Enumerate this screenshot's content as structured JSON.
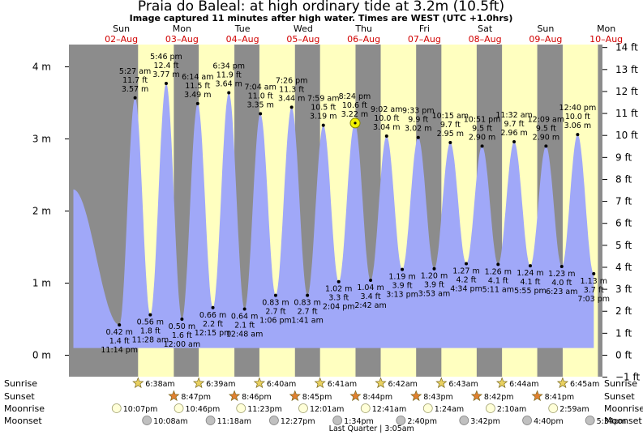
{
  "header": {
    "title": "Praia do Baleal: at high  ordinary tide at 3.2m (10.5ft)",
    "subtitle": "Image captured 11 minutes after high water. Times are WEST (UTC +1.0hrs)"
  },
  "days": [
    {
      "day": "Sun",
      "date": "02–Aug",
      "hour": 24
    },
    {
      "day": "Mon",
      "date": "03–Aug",
      "hour": 48
    },
    {
      "day": "Tue",
      "date": "04–Aug",
      "hour": 72
    },
    {
      "day": "Wed",
      "date": "05–Aug",
      "hour": 96
    },
    {
      "day": "Thu",
      "date": "06–Aug",
      "hour": 120
    },
    {
      "day": "Fri",
      "date": "07–Aug",
      "hour": 144
    },
    {
      "day": "Sat",
      "date": "08–Aug",
      "hour": 168
    },
    {
      "day": "Sun",
      "date": "09–Aug",
      "hour": 192
    },
    {
      "day": "Mon",
      "date": "10–Aug",
      "hour": 216
    }
  ],
  "chart_data": {
    "type": "area",
    "x_unit": "hours from 00:00 on 02-Aug (WEST)",
    "xlim": [
      0,
      240
    ],
    "y_left": {
      "unit": "m",
      "range": [
        -0.2,
        4.25
      ],
      "ticks": [
        "0 m",
        "1 m",
        "2 m",
        "3 m",
        "4 m"
      ],
      "tick_values": [
        0,
        1,
        2,
        3,
        4
      ]
    },
    "y_right": {
      "unit": "ft",
      "ticks": [
        "−1 ft",
        "0 ft",
        "1 ft",
        "2 ft",
        "3 ft",
        "4 ft",
        "5 ft",
        "6 ft",
        "7 ft",
        "8 ft",
        "9 ft",
        "10 ft",
        "11 ft",
        "12 ft",
        "13 ft",
        "14 ft"
      ],
      "tick_values": [
        -1,
        0,
        1,
        2,
        3,
        4,
        5,
        6,
        7,
        8,
        9,
        10,
        11,
        12,
        13,
        14
      ]
    },
    "tides": [
      {
        "type": "low",
        "hour": 23.23,
        "m": 0.42,
        "height": "0.42 m",
        "ft": "1.4 ft",
        "time": "11:14 pm"
      },
      {
        "type": "high",
        "hour": 29.45,
        "m": 3.57,
        "time": "5:27 am",
        "ft": "11.7 ft",
        "height": "3.57 m"
      },
      {
        "type": "low",
        "hour": 35.47,
        "m": 0.56,
        "height": "0.56 m",
        "ft": "1.8 ft",
        "time": "11:28 am"
      },
      {
        "type": "high",
        "hour": 41.77,
        "m": 3.77,
        "time": "5:46 pm",
        "ft": "12.4 ft",
        "height": "3.77 m"
      },
      {
        "type": "low",
        "hour": 48.0,
        "m": 0.5,
        "height": "0.50 m",
        "ft": "1.6 ft",
        "time": "12:00 am"
      },
      {
        "type": "high",
        "hour": 54.23,
        "m": 3.49,
        "time": "6:14 am",
        "ft": "11.5 ft",
        "height": "3.49 m"
      },
      {
        "type": "low",
        "hour": 60.25,
        "m": 0.66,
        "height": "0.66 m",
        "ft": "2.2 ft",
        "time": "12:15 pm"
      },
      {
        "type": "high",
        "hour": 66.57,
        "m": 3.64,
        "time": "6:34 pm",
        "ft": "11.9 ft",
        "height": "3.64 m"
      },
      {
        "type": "low",
        "hour": 72.8,
        "m": 0.64,
        "height": "0.64 m",
        "ft": "2.1 ft",
        "time": "12:48 am"
      },
      {
        "type": "high",
        "hour": 79.07,
        "m": 3.35,
        "time": "7:04 am",
        "ft": "11.0 ft",
        "height": "3.35 m"
      },
      {
        "type": "low",
        "hour": 85.1,
        "m": 0.83,
        "height": "0.83 m",
        "ft": "2.7 ft",
        "time": "1:06 pm"
      },
      {
        "type": "high",
        "hour": 91.43,
        "m": 3.44,
        "time": "7:26 pm",
        "ft": "11.3 ft",
        "height": "3.44 m"
      },
      {
        "type": "low",
        "hour": 97.68,
        "m": 0.83,
        "height": "0.83 m",
        "ft": "2.7 ft",
        "time": "1:41 am"
      },
      {
        "type": "high",
        "hour": 103.98,
        "m": 3.19,
        "time": "7:59 am",
        "ft": "10.5 ft",
        "height": "3.19 m"
      },
      {
        "type": "low",
        "hour": 110.07,
        "m": 1.02,
        "height": "1.02 m",
        "ft": "3.3 ft",
        "time": "2:04 pm"
      },
      {
        "type": "high",
        "hour": 116.4,
        "m": 3.22,
        "time": "8:24 pm",
        "ft": "10.6 ft",
        "height": "3.22 m"
      },
      {
        "type": "low",
        "hour": 122.7,
        "m": 1.04,
        "height": "1.04 m",
        "ft": "3.4 ft",
        "time": "2:42 am"
      },
      {
        "type": "high",
        "hour": 129.03,
        "m": 3.04,
        "time": "9:02 am",
        "ft": "10.0 ft",
        "height": "3.04 m"
      },
      {
        "type": "low",
        "hour": 135.22,
        "m": 1.19,
        "height": "1.19 m",
        "ft": "3.9 ft",
        "time": "3:13 pm"
      },
      {
        "type": "high",
        "hour": 141.55,
        "m": 3.02,
        "time": "9:33 pm",
        "ft": "9.9 ft",
        "height": "3.02 m"
      },
      {
        "type": "low",
        "hour": 147.88,
        "m": 1.2,
        "height": "1.20 m",
        "ft": "3.9 ft",
        "time": "3:53 am"
      },
      {
        "type": "high",
        "hour": 154.25,
        "m": 2.95,
        "time": "10:15 am",
        "ft": "9.7 ft",
        "height": "2.95 m"
      },
      {
        "type": "low",
        "hour": 160.57,
        "m": 1.27,
        "height": "1.27 m",
        "ft": "4.2 ft",
        "time": "4:34 pm"
      },
      {
        "type": "high",
        "hour": 166.85,
        "m": 2.9,
        "time": "10:51 pm",
        "ft": "9.5 ft",
        "height": "2.90 m"
      },
      {
        "type": "low",
        "hour": 173.18,
        "m": 1.26,
        "height": "1.26 m",
        "ft": "4.1 ft",
        "time": "5:11 am"
      },
      {
        "type": "high",
        "hour": 179.53,
        "m": 2.96,
        "time": "11:32 am",
        "ft": "9.7 ft",
        "height": "2.96 m"
      },
      {
        "type": "low",
        "hour": 185.92,
        "m": 1.24,
        "height": "1.24 m",
        "ft": "4.1 ft",
        "time": "5:55 pm"
      },
      {
        "type": "high",
        "hour": 192.15,
        "m": 2.9,
        "time": "12:09 am",
        "ft": "9.5 ft",
        "height": "2.90 m"
      },
      {
        "type": "low",
        "hour": 198.38,
        "m": 1.23,
        "height": "1.23 m",
        "ft": "4.0 ft",
        "time": "6:23 am"
      },
      {
        "type": "high",
        "hour": 204.67,
        "m": 3.06,
        "time": "12:40 pm",
        "ft": "10.0 ft",
        "height": "3.06 m"
      },
      {
        "type": "low",
        "hour": 211.05,
        "m": 1.13,
        "height": "1.13 m",
        "ft": "3.7 ft",
        "time": "7:03 pm"
      }
    ],
    "daylight": [
      {
        "sunrise_hour": 30.63,
        "sunset_hour": 44.78
      },
      {
        "sunrise_hour": 54.65,
        "sunset_hour": 68.77
      },
      {
        "sunrise_hour": 78.67,
        "sunset_hour": 92.75
      },
      {
        "sunrise_hour": 102.68,
        "sunset_hour": 116.73
      },
      {
        "sunrise_hour": 126.7,
        "sunset_hour": 140.72
      },
      {
        "sunrise_hour": 150.72,
        "sunset_hour": 164.7
      },
      {
        "sunrise_hour": 174.73,
        "sunset_hour": 188.68
      },
      {
        "sunrise_hour": 198.75,
        "sunset_hour": 212.7
      }
    ],
    "current_time_hour": 116.58,
    "current_height_m": 3.22,
    "colors": {
      "night": "#8c8c8c",
      "day": "#ffffc0",
      "water": "#a0a8f8",
      "marker": "#f0f000",
      "date_text": "#d00000"
    }
  },
  "events": {
    "row_labels": {
      "sunrise": "Sunrise",
      "sunset": "Sunset",
      "moonrise": "Moonrise",
      "moonset": "Moonset"
    },
    "sunrise": [
      {
        "hour": 30.63,
        "time": "6:38am"
      },
      {
        "hour": 54.65,
        "time": "6:39am"
      },
      {
        "hour": 78.67,
        "time": "6:40am"
      },
      {
        "hour": 102.68,
        "time": "6:41am"
      },
      {
        "hour": 126.7,
        "time": "6:42am"
      },
      {
        "hour": 150.72,
        "time": "6:43am"
      },
      {
        "hour": 174.73,
        "time": "6:44am"
      },
      {
        "hour": 198.75,
        "time": "6:45am"
      }
    ],
    "sunset": [
      {
        "hour": 44.78,
        "time": "8:47pm"
      },
      {
        "hour": 68.77,
        "time": "8:46pm"
      },
      {
        "hour": 92.75,
        "time": "8:45pm"
      },
      {
        "hour": 116.73,
        "time": "8:44pm"
      },
      {
        "hour": 140.72,
        "time": "8:43pm"
      },
      {
        "hour": 164.7,
        "time": "8:42pm"
      },
      {
        "hour": 188.68,
        "time": "8:41pm"
      }
    ],
    "moonrise": [
      {
        "hour": 22.12,
        "time": "10:07pm"
      },
      {
        "hour": 46.77,
        "time": "10:46pm"
      },
      {
        "hour": 71.38,
        "time": "11:23pm"
      },
      {
        "hour": 96.02,
        "time": "12:01am"
      },
      {
        "hour": 120.68,
        "time": "12:41am"
      },
      {
        "hour": 145.4,
        "time": "1:24am"
      },
      {
        "hour": 170.17,
        "time": "2:10am"
      },
      {
        "hour": 194.98,
        "time": "2:59am"
      }
    ],
    "moonset": [
      {
        "hour": 34.13,
        "time": "10:08am"
      },
      {
        "hour": 59.3,
        "time": "11:18am"
      },
      {
        "hour": 84.45,
        "time": "12:27pm"
      },
      {
        "hour": 109.57,
        "time": "1:34pm"
      },
      {
        "hour": 134.67,
        "time": "2:40pm"
      },
      {
        "hour": 159.7,
        "time": "3:42pm"
      },
      {
        "hour": 184.67,
        "time": "4:40pm"
      },
      {
        "hour": 209.57,
        "time": "5:34pm"
      }
    ],
    "moon_phase": {
      "hour": 123.08,
      "label": "Last Quarter | 3:05am"
    }
  }
}
